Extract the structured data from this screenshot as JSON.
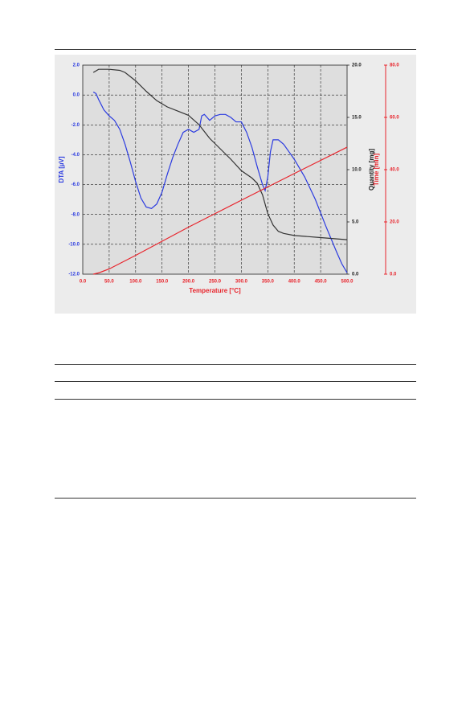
{
  "chart_data": {
    "type": "line",
    "xlabel": "Temperature  [°C]",
    "ylabel": "DTA  [µV]",
    "y2label": "Quantity  [mg]",
    "y3label": "Time  [min]",
    "xlim": [
      0,
      500
    ],
    "xticks": [
      {
        "value": 0,
        "label": "0.0"
      },
      {
        "value": 50,
        "label": "50.0"
      },
      {
        "value": 100,
        "label": "100.0"
      },
      {
        "value": 150,
        "label": "150.0"
      },
      {
        "value": 200,
        "label": "200.0"
      },
      {
        "value": 250,
        "label": "250.0"
      },
      {
        "value": 300,
        "label": "300.0"
      },
      {
        "value": 350,
        "label": "350.0"
      },
      {
        "value": 400,
        "label": "400.0"
      },
      {
        "value": 450,
        "label": "450.0"
      },
      {
        "value": 500,
        "label": "500.0"
      }
    ],
    "ylim": [
      -12,
      2
    ],
    "yticks": [
      {
        "value": -12,
        "label": "-12.0"
      },
      {
        "value": -10,
        "label": "-10.0"
      },
      {
        "value": -8,
        "label": "-8.0"
      },
      {
        "value": -6,
        "label": "-6.0"
      },
      {
        "value": -4,
        "label": "-4.0"
      },
      {
        "value": -2,
        "label": "-2.0"
      },
      {
        "value": 0,
        "label": "0.0"
      },
      {
        "value": 2,
        "label": "2.0"
      }
    ],
    "y2lim": [
      0,
      20
    ],
    "y2ticks": [
      {
        "value": 0,
        "label": "0.0"
      },
      {
        "value": 5,
        "label": "5.0"
      },
      {
        "value": 10,
        "label": "10.0"
      },
      {
        "value": 15,
        "label": "15.0"
      },
      {
        "value": 20,
        "label": "20.0"
      }
    ],
    "y3lim": [
      0,
      80
    ],
    "y3ticks": [
      {
        "value": 0,
        "label": "0.0"
      },
      {
        "value": 20,
        "label": "20.0"
      },
      {
        "value": 40,
        "label": "40.0"
      },
      {
        "value": 60,
        "label": "60.0"
      },
      {
        "value": 80,
        "label": "80.0"
      }
    ],
    "grid": true,
    "series": [
      {
        "color": "#2b3be0",
        "axis": "y",
        "x": [
          20,
          25,
          30,
          40,
          50,
          60,
          70,
          80,
          90,
          100,
          110,
          120,
          130,
          140,
          150,
          160,
          170,
          180,
          190,
          200,
          210,
          220,
          225,
          230,
          240,
          250,
          260,
          270,
          280,
          290,
          300,
          310,
          320,
          330,
          340,
          345,
          350,
          355,
          360,
          370,
          380,
          390,
          400,
          420,
          440,
          460,
          480,
          490,
          500
        ],
        "values": [
          0.2,
          0.1,
          -0.3,
          -1.0,
          -1.4,
          -1.7,
          -2.3,
          -3.3,
          -4.5,
          -5.8,
          -6.9,
          -7.5,
          -7.6,
          -7.3,
          -6.5,
          -5.3,
          -4.2,
          -3.3,
          -2.5,
          -2.3,
          -2.5,
          -2.3,
          -1.4,
          -1.3,
          -1.7,
          -1.4,
          -1.3,
          -1.3,
          -1.5,
          -1.8,
          -1.8,
          -2.5,
          -3.5,
          -4.8,
          -6.0,
          -6.4,
          -5.5,
          -3.8,
          -3.0,
          -3.0,
          -3.3,
          -3.8,
          -4.3,
          -5.5,
          -7.0,
          -8.8,
          -10.5,
          -11.3,
          -11.9
        ]
      },
      {
        "color": "#333333",
        "axis": "y2",
        "x": [
          20,
          30,
          50,
          70,
          80,
          100,
          120,
          140,
          160,
          180,
          200,
          220,
          240,
          260,
          280,
          300,
          320,
          330,
          340,
          350,
          360,
          370,
          380,
          400,
          450,
          500
        ],
        "values": [
          19.3,
          19.6,
          19.6,
          19.5,
          19.3,
          18.5,
          17.5,
          16.6,
          16.0,
          15.6,
          15.2,
          14.3,
          13.0,
          12.0,
          11.0,
          9.9,
          9.2,
          8.7,
          7.6,
          5.8,
          4.7,
          4.1,
          3.9,
          3.7,
          3.5,
          3.3
        ]
      },
      {
        "color": "#e8242c",
        "axis": "y3",
        "x": [
          20,
          30,
          50,
          100,
          200,
          300,
          400,
          500
        ],
        "values": [
          0,
          0.5,
          2,
          7.2,
          18,
          28.3,
          38.5,
          48.6
        ]
      }
    ]
  }
}
